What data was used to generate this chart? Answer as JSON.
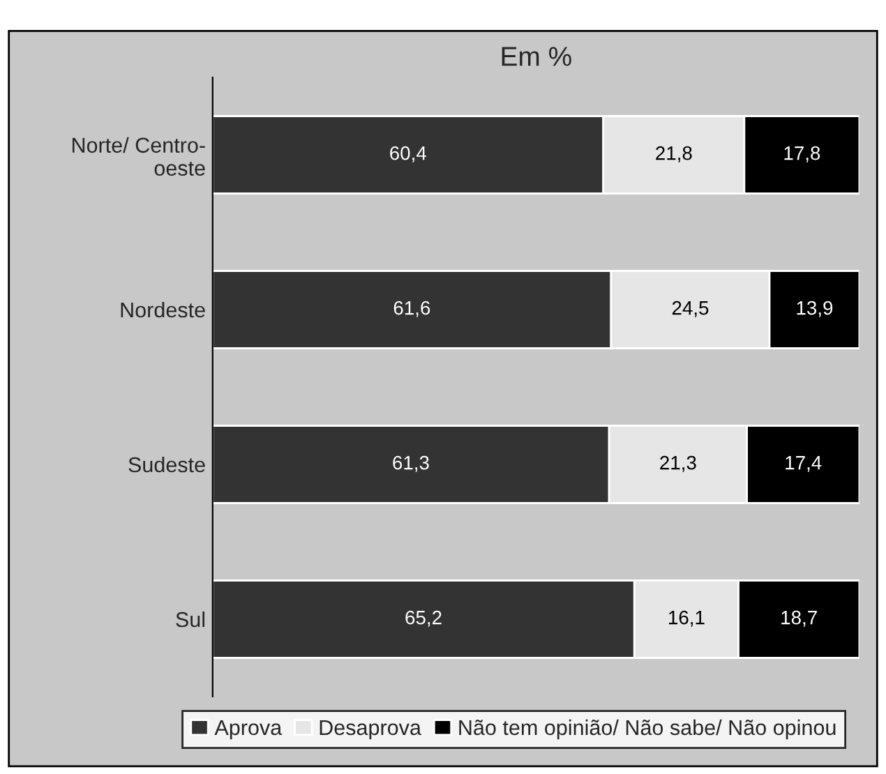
{
  "chart_data": {
    "type": "bar",
    "orientation": "horizontal",
    "stacked": true,
    "subtitle": "Em %",
    "categories": [
      "Norte/ Centro-\noeste",
      "Nordeste",
      "Sudeste",
      "Sul"
    ],
    "series": [
      {
        "name": "Aprova",
        "color": "#333333",
        "values": [
          60.4,
          61.6,
          61.3,
          65.2
        ],
        "value_labels": [
          "60,4",
          "61,6",
          "61,3",
          "65,2"
        ]
      },
      {
        "name": "Desaprova",
        "color": "#e6e6e6",
        "values": [
          21.8,
          24.5,
          21.3,
          16.1
        ],
        "value_labels": [
          "21,8",
          "24,5",
          "21,3",
          "16,1"
        ]
      },
      {
        "name": "Não tem opinião/ Não sabe/ Não opinou",
        "color": "#000000",
        "values": [
          17.8,
          13.9,
          17.4,
          18.7
        ],
        "value_labels": [
          "17,8",
          "13,9",
          "17,4",
          "18,7"
        ]
      }
    ],
    "legend": "bottom",
    "tick_labels": "y"
  }
}
